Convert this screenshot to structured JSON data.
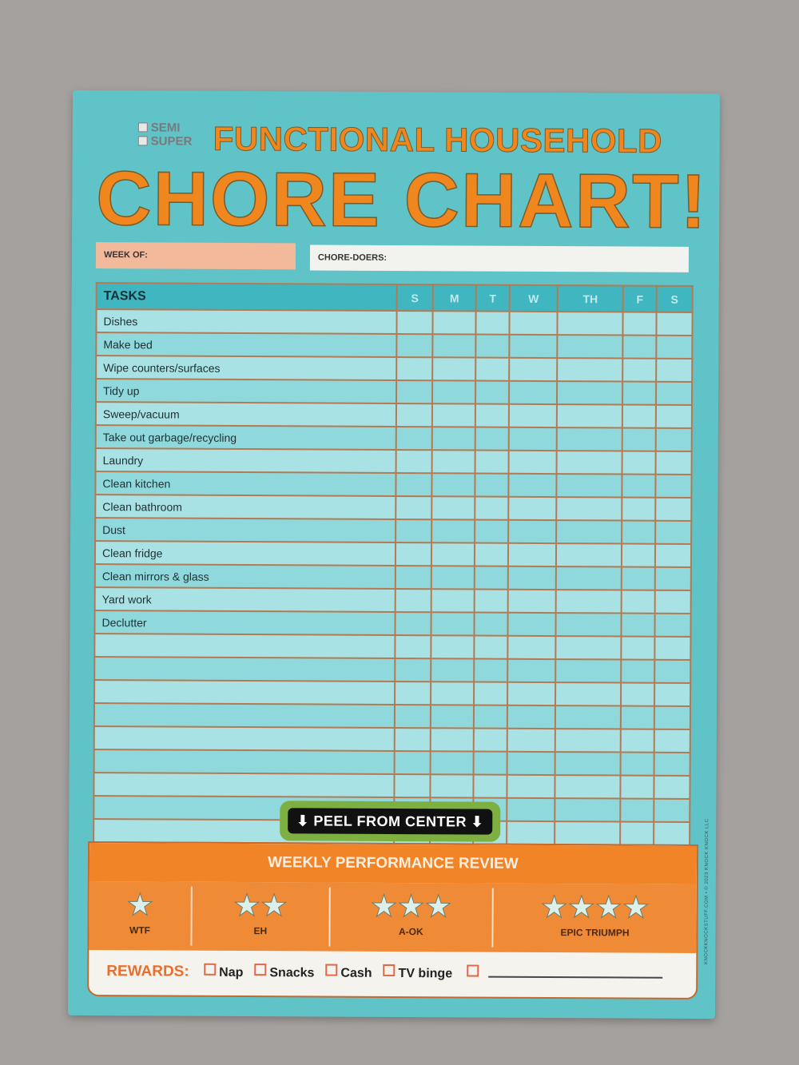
{
  "header": {
    "options": [
      "SEMI",
      "SUPER"
    ],
    "title_line1": "FUNCTIONAL HOUSEHOLD",
    "title_line2": "CHORE CHART!"
  },
  "fields": {
    "week_of": "WEEK OF:",
    "chore_doers": "CHORE-DOERS:"
  },
  "table": {
    "tasks_header": "TASKS",
    "days": [
      "S",
      "M",
      "T",
      "W",
      "TH",
      "F",
      "S"
    ],
    "tasks": [
      "Dishes",
      "Make bed",
      "Wipe counters/surfaces",
      "Tidy up",
      "Sweep/vacuum",
      "Take out garbage/recycling",
      "Laundry",
      "Clean kitchen",
      "Clean bathroom",
      "Dust",
      "Clean fridge",
      "Clean mirrors & glass",
      "Yard work",
      "Declutter",
      "",
      "",
      "",
      "",
      "",
      "",
      "",
      "",
      ""
    ]
  },
  "peel": "⬇ PEEL FROM CENTER ⬇",
  "review": {
    "title": "WEEKLY PERFORMANCE REVIEW",
    "levels": [
      {
        "label": "WTF",
        "stars": 1
      },
      {
        "label": "EH",
        "stars": 2
      },
      {
        "label": "A-OK",
        "stars": 3
      },
      {
        "label": "EPIC TRIUMPH",
        "stars": 4
      }
    ]
  },
  "rewards": {
    "label": "REWARDS:",
    "items": [
      "Nap",
      "Snacks",
      "Cash",
      "TV binge"
    ]
  },
  "side_text": "KNOCKKNOCKSTUFF.COM • © 2023 KNOCK KNOCK LLC",
  "colors": {
    "paper": "#5fc3c8",
    "orange": "#f0861e",
    "accent_green": "#7db040"
  }
}
